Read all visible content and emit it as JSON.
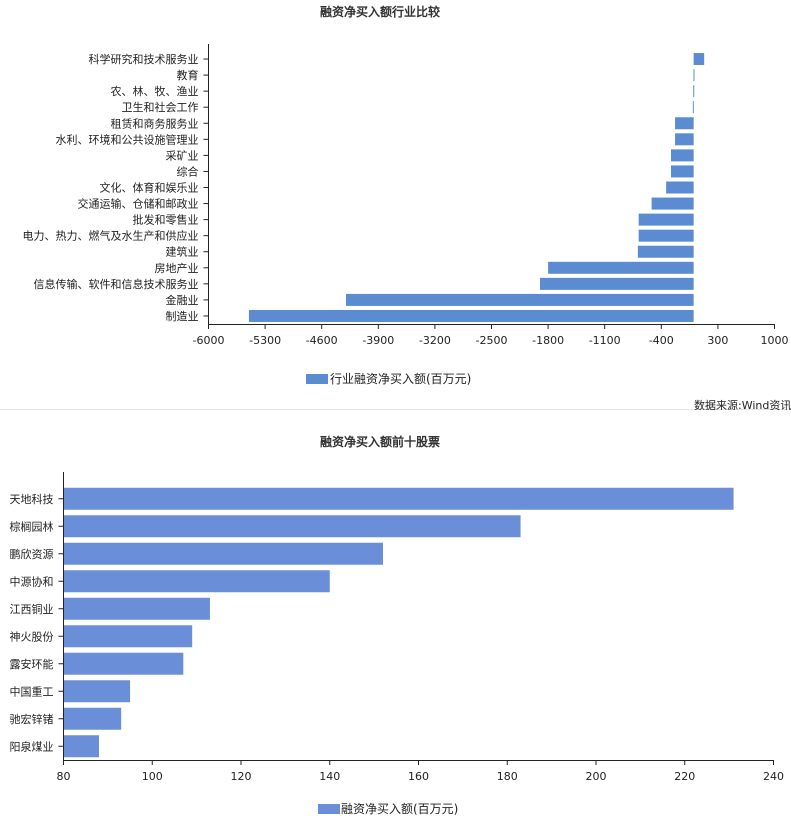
{
  "source_text": "数据来源:Wind资讯",
  "chart_data": [
    {
      "type": "bar",
      "orientation": "horizontal",
      "title": "融资净买入额行业比较",
      "categories": [
        "科学研究和技术服务业",
        "教育",
        "农、林、牧、渔业",
        "卫生和社会工作",
        "租赁和商务服务业",
        "水利、环境和公共设施管理业",
        "采矿业",
        "综合",
        "文化、体育和娱乐业",
        "交通运输、仓储和邮政业",
        "批发和零售业",
        "电力、热力、燃气及水生产和供应业",
        "建筑业",
        "房地产业",
        "信息传输、软件和信息技术服务业",
        "金融业",
        "制造业"
      ],
      "series": [
        {
          "name": "行业融资净买入额(百万元)",
          "values": [
            130,
            -2,
            -5,
            -10,
            -230,
            -230,
            -280,
            -280,
            -340,
            -520,
            -680,
            -680,
            -690,
            -1800,
            -1900,
            -4300,
            -5500
          ]
        }
      ],
      "xlim": [
        -6000,
        1000
      ],
      "xticks": [
        -6000,
        -5300,
        -4600,
        -3900,
        -3200,
        -2500,
        -1800,
        -1100,
        -400,
        300,
        1000
      ],
      "color": "#5b8bd0",
      "legend_position": "bottom",
      "grid": false
    },
    {
      "type": "bar",
      "orientation": "horizontal",
      "title": "融资净买入额前十股票",
      "categories": [
        "天地科技",
        "棕榈园林",
        "鹏欣资源",
        "中源协和",
        "江西铜业",
        "神火股份",
        "露安环能",
        "中国重工",
        "驰宏锌锗",
        "阳泉煤业"
      ],
      "series": [
        {
          "name": "融资净买入额(百万元)",
          "values": [
            231,
            183,
            152,
            140,
            113,
            109,
            107,
            95,
            93,
            88
          ]
        }
      ],
      "xlim": [
        80,
        240
      ],
      "xticks": [
        80,
        100,
        120,
        140,
        160,
        180,
        200,
        220,
        240
      ],
      "color": "#6a8fd8",
      "legend_position": "bottom",
      "grid": false
    }
  ]
}
